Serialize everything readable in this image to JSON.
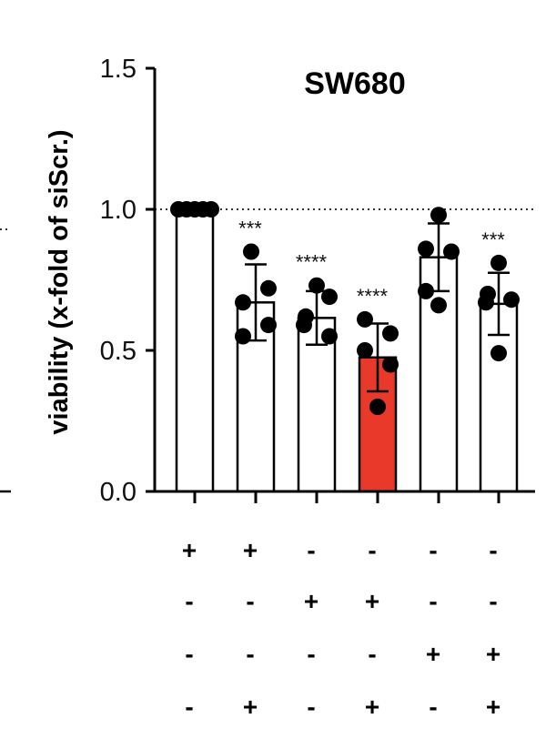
{
  "chart_data": {
    "type": "bar",
    "title": "SW680",
    "ylabel": "viability (x-fold of siScr.)",
    "xlabel": "",
    "ylim": [
      0,
      1.5
    ],
    "yticks": [
      "0.0",
      "0.5",
      "1.0",
      "1.5"
    ],
    "reference_line": 1.0,
    "bar_count": 6,
    "values": [
      1.0,
      0.67,
      0.615,
      0.475,
      0.83,
      0.665
    ],
    "errors": [
      0.0,
      0.135,
      0.095,
      0.12,
      0.12,
      0.11
    ],
    "points": [
      [
        1.0,
        1.0,
        1.0,
        1.0,
        1.0
      ],
      [
        0.85,
        0.72,
        0.67,
        0.59,
        0.55
      ],
      [
        0.73,
        0.69,
        0.62,
        0.59,
        0.55
      ],
      [
        0.61,
        0.56,
        0.5,
        0.45,
        0.3
      ],
      [
        0.98,
        0.86,
        0.85,
        0.71,
        0.66
      ],
      [
        0.81,
        0.7,
        0.68,
        0.67,
        0.49
      ]
    ],
    "significance": [
      "",
      "***",
      "****",
      "****",
      "",
      "***"
    ],
    "bar_colors": [
      "#ffffff",
      "#ffffff",
      "#ffffff",
      "#e8392a",
      "#ffffff",
      "#ffffff"
    ],
    "condition_rows": [
      [
        "+",
        "+",
        "-",
        "-",
        "-",
        "-"
      ],
      [
        "-",
        "-",
        "+",
        "+",
        "-",
        "-"
      ],
      [
        "-",
        "-",
        "-",
        "-",
        "+",
        "+"
      ],
      [
        "-",
        "+",
        "-",
        "+",
        "-",
        "+"
      ]
    ]
  }
}
